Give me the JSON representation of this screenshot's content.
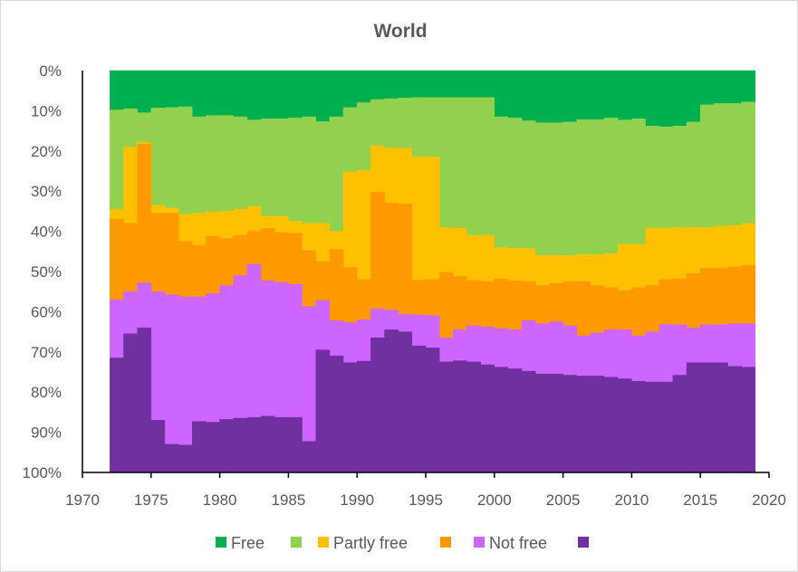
{
  "chart_data": {
    "type": "area",
    "subtype": "stacked-step-100-percent",
    "title": "World",
    "xlabel": "",
    "ylabel": "",
    "xlim": [
      1970,
      2020
    ],
    "ylim": [
      0,
      100
    ],
    "y_inverted": true,
    "y_ticks": [
      "0%",
      "10%",
      "20%",
      "30%",
      "40%",
      "50%",
      "60%",
      "70%",
      "80%",
      "90%",
      "100%"
    ],
    "x_ticks": [
      "1970",
      "1975",
      "1980",
      "1985",
      "1990",
      "1995",
      "2000",
      "2005",
      "2010",
      "2015",
      "2020"
    ],
    "grid": false,
    "legend_position": "bottom",
    "x": [
      1972,
      1973,
      1974,
      1975,
      1976,
      1977,
      1978,
      1979,
      1980,
      1981,
      1982,
      1983,
      1984,
      1985,
      1986,
      1987,
      1988,
      1989,
      1990,
      1991,
      1992,
      1993,
      1994,
      1995,
      1996,
      1997,
      1998,
      1999,
      2000,
      2001,
      2002,
      2003,
      2004,
      2005,
      2006,
      2007,
      2008,
      2009,
      2010,
      2011,
      2012,
      2013,
      2014,
      2015,
      2016,
      2017,
      2018
    ],
    "x_end": 2019,
    "series": [
      {
        "name": "Free",
        "color": "#00B050",
        "values": [
          9.8,
          9.5,
          10.5,
          9.3,
          9.2,
          9,
          11.5,
          11.2,
          11.2,
          11.5,
          12.3,
          12,
          12,
          11.8,
          11.5,
          12.7,
          11.5,
          9.2,
          8,
          7.2,
          7,
          6.8,
          6.7,
          6.7,
          6.7,
          6.7,
          6.7,
          6.7,
          11.5,
          11.8,
          12.5,
          13,
          13,
          12.8,
          12.2,
          12.2,
          11.8,
          12.3,
          12,
          13.8,
          14,
          13.8,
          12.8,
          8.5,
          8.2,
          8.2,
          7.8
        ]
      },
      {
        "name": "",
        "color": "#92D050",
        "values": [
          24.7,
          9.5,
          7.3,
          24.2,
          25,
          26.8,
          24,
          24,
          23.8,
          23,
          21.5,
          24.3,
          24.3,
          25.7,
          26.5,
          25.3,
          28.5,
          16,
          16.8,
          11.5,
          12.2,
          12.5,
          14.8,
          14.8,
          32.3,
          32.5,
          34.3,
          34.3,
          32.5,
          32.4,
          31.8,
          33,
          33,
          33.2,
          33.6,
          33.6,
          33.7,
          30.9,
          31.2,
          25.4,
          25.2,
          25.2,
          26.2,
          30.5,
          30.5,
          30.3,
          30.2
        ]
      },
      {
        "name": "Partly free",
        "color": "#FFC000",
        "values": [
          2.5,
          19,
          0.5,
          2,
          1.3,
          6.7,
          8,
          6,
          6.8,
          6.5,
          6.2,
          3,
          4,
          3,
          6.8,
          9.5,
          4.5,
          23.8,
          27.2,
          11.6,
          13.8,
          13.9,
          30.7,
          30.5,
          11.2,
          12,
          11.2,
          11.5,
          7.8,
          8.1,
          8.2,
          7.5,
          7,
          6.5,
          6.7,
          7.7,
          8.5,
          11.5,
          10.8,
          14.3,
          12.8,
          12.8,
          11.5,
          10.2,
          10.5,
          10.3,
          10.5
        ]
      },
      {
        "name": "",
        "color": "#FF9900",
        "values": [
          20,
          17,
          34.5,
          19.5,
          20.3,
          13.8,
          12.8,
          14.3,
          11.7,
          10,
          8.2,
          13,
          12.4,
          12.7,
          13.9,
          9.7,
          17.7,
          13.7,
          10,
          29,
          26.6,
          27.4,
          8.6,
          9,
          16.3,
          13.3,
          11.3,
          11.3,
          12.4,
          12.2,
          9.7,
          9.5,
          9.5,
          11,
          13.5,
          11.8,
          10.5,
          9.8,
          12,
          11.5,
          11.2,
          11.5,
          13.5,
          14.1,
          14,
          14.2,
          14.5
        ]
      },
      {
        "name": "Not free",
        "color": "#CC66FF",
        "values": [
          14.5,
          10.5,
          11.2,
          32,
          37.2,
          36.9,
          31,
          32,
          33.3,
          35.5,
          38.1,
          33.7,
          33.6,
          33.1,
          33.6,
          12.3,
          8.8,
          10,
          10.3,
          7.2,
          4.9,
          4.4,
          7.7,
          8,
          6,
          7.7,
          9,
          9.4,
          9.6,
          9.7,
          12.6,
          12.5,
          13,
          12.3,
          10,
          10.7,
          11.8,
          12.2,
          11.3,
          12.5,
          14.3,
          12.5,
          8.7,
          9.4,
          9.5,
          10.6,
          10.8
        ]
      },
      {
        "name": "",
        "color": "#7030A0",
        "values": [
          28.5,
          34.5,
          36,
          13,
          7,
          6.8,
          12.7,
          12.5,
          13.2,
          13.5,
          13.7,
          14,
          13.7,
          13.7,
          7.7,
          30.5,
          29,
          27.3,
          27.7,
          33.5,
          35.5,
          35,
          31.5,
          31,
          27.5,
          27.8,
          27.5,
          26.8,
          26.2,
          25.8,
          25.2,
          24.5,
          24.5,
          24.2,
          24,
          24,
          23.7,
          23.3,
          22.7,
          22.5,
          22.5,
          24.2,
          27.3,
          27.3,
          27.3,
          26.2,
          26.2
        ]
      }
    ]
  }
}
